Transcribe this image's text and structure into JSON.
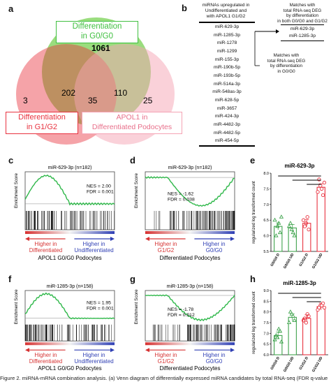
{
  "panels": {
    "a": "a",
    "b": "b",
    "c": "c",
    "d": "d",
    "e": "e",
    "f": "f",
    "g": "g",
    "h": "h"
  },
  "venn": {
    "label_green": "Differentiation\nin G0/G0",
    "label_red": "Differentiation\nin G1/G2",
    "label_pink": "APOL1 in\nDifferentiated Podocytes",
    "counts": {
      "green_only": "1061",
      "red_only": "3",
      "pink_only": "25",
      "red_green": "202",
      "green_pink": "110",
      "all": "35"
    },
    "colors": {
      "green": "#7dd35a",
      "red": "#e8323f",
      "pink": "#f5a3b4"
    }
  },
  "mirna_list": {
    "header": "miRNAs upregulated in\nUndifferentiated and\nwith APOL1 G1/G2",
    "items": [
      "miR-629-3p",
      "miR-1285-3p",
      "miR-1278",
      "miR-1299",
      "miR-155-3p",
      "miR-190b-5p",
      "miR-193b-5p",
      "miR-514a-3p",
      "miR-548as-3p",
      "miR-628-5p",
      "miR-3657",
      "miR-424-3p",
      "miR-4482-3p",
      "miR-4482-5p",
      "miR-454-5p"
    ],
    "match_both_label": "Matches with\ntotal RNA-seq DEG\nby differentiation\nin both G0/G0 and G1/G2",
    "match_both_items": [
      "miR-629-3p",
      "miR-1285-3p"
    ],
    "match_g0_label": "Matches with\ntotal RNA-seq DEG\nby differentiation\nin G0/G0"
  },
  "gsea": {
    "c": {
      "title": "miR-629-3p  (n=182)",
      "nes": "NES = 2.00",
      "fdr": "FDR = 0.001",
      "left": "Higher in\nDifferentiated",
      "right": "Higher in\nUndifferentiated",
      "bottom": "APOL1 G0/G0 Podocytes"
    },
    "d": {
      "title": "miR-629-3p  (n=182)",
      "nes": "NES = -1.62",
      "fdr": "FDR = 0.038",
      "left": "Higher in\nG1/G2",
      "right": "Higher in\nG0/G0",
      "bottom": "Differentiated Podocytes"
    },
    "f": {
      "title": "miR-1285-3p  (n=158)",
      "nes": "NES = 1.95",
      "fdr": "FDR = 0.001",
      "left": "Higher in\nDifferentiated",
      "right": "Higher in\nUndifferentiated",
      "bottom": "APOL1 G0/G0 Podocytes"
    },
    "g": {
      "title": "miR-1285-3p  (n=158)",
      "nes": "NES = -1.78",
      "fdr": "FDR = 0.012",
      "left": "Higher in\nG1/G2",
      "right": "Higher in\nG0/G0",
      "bottom": "Differentiated Podocytes"
    },
    "ylabel": "Enrichment Score"
  },
  "chart_data": [
    {
      "type": "bar",
      "title": "miR-629-3p",
      "ylabel": "regularized log transformed count",
      "categories": [
        "G0/G0 D",
        "G0/G0 UD",
        "G1/G2 D",
        "G1/G2 UD"
      ],
      "values": [
        6.3,
        6.25,
        6.4,
        7.55
      ],
      "ylim": [
        5.5,
        8.0
      ],
      "yticks": [
        "5.5",
        "6.0",
        "6.5",
        "7.0",
        "7.5",
        "8.0"
      ],
      "points": [
        [
          6.5,
          6.3,
          6.1,
          6.0,
          6.4,
          6.6
        ],
        [
          6.3,
          6.2,
          6.0,
          6.4,
          6.1
        ],
        [
          6.5,
          6.4,
          6.2,
          6.3,
          6.6
        ],
        [
          7.4,
          7.6,
          7.3,
          7.8,
          7.5,
          7.7
        ]
      ],
      "colors": [
        "#3fa34d",
        "#3fa34d",
        "#e8323f",
        "#e8323f"
      ]
    },
    {
      "type": "bar",
      "title": "miR-1285-3p",
      "ylabel": "regularized log transformed count",
      "categories": [
        "G0/G0 D",
        "G0/G0 UD",
        "G1/G2 D",
        "G1/G2 UD"
      ],
      "values": [
        6.9,
        7.75,
        7.7,
        8.25
      ],
      "ylim": [
        6.0,
        9.0
      ],
      "yticks": [
        "6.0",
        "6.5",
        "7.0",
        "7.5",
        "8.0",
        "8.5",
        "9.0"
      ],
      "points": [
        [
          6.7,
          6.8,
          7.1,
          6.9,
          7.2,
          6.6
        ],
        [
          7.5,
          7.9,
          7.6,
          8.0,
          7.8
        ],
        [
          7.6,
          7.5,
          7.8,
          7.7,
          7.9
        ],
        [
          8.1,
          8.3,
          8.4,
          8.2,
          8.3,
          8.2
        ]
      ],
      "colors": [
        "#3fa34d",
        "#3fa34d",
        "#e8323f",
        "#e8323f"
      ]
    }
  ],
  "caption": "Figure 2. miRNA-mRNA combination analysis. (a) Venn diagram of differentially expressed miRNA candidates by total RNA-seq (FDR q-value"
}
